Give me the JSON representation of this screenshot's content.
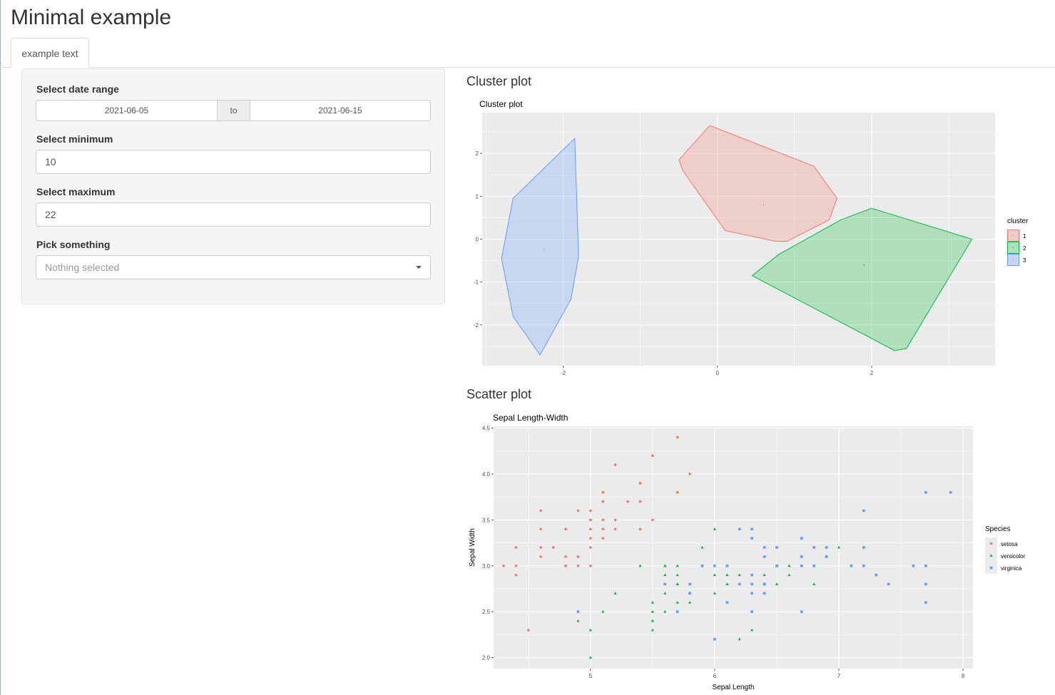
{
  "page": {
    "title": "Minimal example"
  },
  "tabs": [
    {
      "label": "example text"
    }
  ],
  "sidebar": {
    "date_range": {
      "label": "Select date range",
      "start": "2021-06-05",
      "separator": "to",
      "end": "2021-06-15"
    },
    "minimum": {
      "label": "Select minimum",
      "value": "10"
    },
    "maximum": {
      "label": "Select maximum",
      "value": "22"
    },
    "pick": {
      "label": "Pick something",
      "placeholder": "Nothing selected"
    }
  },
  "sections": {
    "cluster": "Cluster plot",
    "scatter": "Scatter plot"
  },
  "colors": {
    "red": "#F8766D",
    "green": "#00BA38",
    "blue": "#619CFF",
    "panel": "#EBEBEB"
  },
  "chart_data": [
    {
      "type": "scatter",
      "title": "Cluster plot",
      "xlabel": "",
      "ylabel": "",
      "xlim": [
        -3.05,
        3.6
      ],
      "ylim": [
        -2.95,
        2.95
      ],
      "xticks": [
        -2,
        0,
        2
      ],
      "yticks": [
        2,
        1,
        0,
        -1,
        -2
      ],
      "grid": true,
      "legend": {
        "title": "cluster",
        "position": "right",
        "entries": [
          "1",
          "2",
          "3"
        ]
      },
      "series": [
        {
          "name": "1",
          "color": "#F8766D",
          "hull": [
            [
              -0.1,
              2.65
            ],
            [
              1.25,
              1.7
            ],
            [
              1.55,
              0.95
            ],
            [
              1.45,
              0.45
            ],
            [
              0.9,
              -0.05
            ],
            [
              0.75,
              -0.05
            ],
            [
              0.1,
              0.2
            ],
            [
              -0.45,
              1.6
            ],
            [
              -0.5,
              1.85
            ]
          ],
          "center": [
            0.6,
            0.8
          ]
        },
        {
          "name": "2",
          "color": "#00BA38",
          "hull": [
            [
              2.0,
              0.72
            ],
            [
              3.3,
              0.0
            ],
            [
              2.45,
              -2.55
            ],
            [
              2.3,
              -2.6
            ],
            [
              0.45,
              -0.85
            ],
            [
              0.8,
              -0.35
            ],
            [
              1.6,
              0.45
            ]
          ],
          "center": [
            1.9,
            -0.6
          ]
        },
        {
          "name": "3",
          "color": "#619CFF",
          "hull": [
            [
              -1.85,
              2.35
            ],
            [
              -1.8,
              -0.4
            ],
            [
              -1.9,
              -1.4
            ],
            [
              -2.3,
              -2.7
            ],
            [
              -2.65,
              -1.8
            ],
            [
              -2.8,
              -0.45
            ],
            [
              -2.65,
              0.95
            ]
          ],
          "center": [
            -2.25,
            -0.25
          ]
        }
      ]
    },
    {
      "type": "scatter",
      "title": "Sepal Length-Width",
      "xlabel": "Sepal Length",
      "ylabel": "Sepal Width",
      "xlim": [
        4.22,
        8.08
      ],
      "ylim": [
        1.88,
        4.52
      ],
      "xticks": [
        5,
        6,
        7,
        8
      ],
      "yticks": [
        4.5,
        4.0,
        3.5,
        3.0,
        2.5,
        2.0
      ],
      "grid": true,
      "legend": {
        "title": "Species",
        "position": "right",
        "entries": [
          "setosa",
          "versicolor",
          "virginica"
        ]
      },
      "series": [
        {
          "name": "setosa",
          "color": "#F8766D",
          "shape": "circle",
          "points": [
            [
              5.1,
              3.5
            ],
            [
              4.9,
              3.0
            ],
            [
              4.7,
              3.2
            ],
            [
              4.6,
              3.1
            ],
            [
              5.0,
              3.6
            ],
            [
              5.4,
              3.9
            ],
            [
              4.6,
              3.4
            ],
            [
              5.0,
              3.4
            ],
            [
              4.4,
              2.9
            ],
            [
              4.9,
              3.1
            ],
            [
              5.4,
              3.7
            ],
            [
              4.8,
              3.4
            ],
            [
              4.8,
              3.0
            ],
            [
              4.3,
              3.0
            ],
            [
              5.8,
              4.0
            ],
            [
              5.7,
              4.4
            ],
            [
              5.4,
              3.9
            ],
            [
              5.1,
              3.5
            ],
            [
              5.7,
              3.8
            ],
            [
              5.1,
              3.8
            ],
            [
              5.4,
              3.4
            ],
            [
              5.1,
              3.7
            ],
            [
              4.6,
              3.6
            ],
            [
              5.1,
              3.3
            ],
            [
              4.8,
              3.4
            ],
            [
              5.0,
              3.0
            ],
            [
              5.0,
              3.4
            ],
            [
              5.2,
              3.5
            ],
            [
              5.2,
              3.4
            ],
            [
              4.7,
              3.2
            ],
            [
              4.8,
              3.1
            ],
            [
              5.4,
              3.4
            ],
            [
              5.2,
              4.1
            ],
            [
              5.5,
              4.2
            ],
            [
              4.9,
              3.1
            ],
            [
              5.0,
              3.2
            ],
            [
              5.5,
              3.5
            ],
            [
              4.9,
              3.6
            ],
            [
              4.4,
              3.0
            ],
            [
              5.1,
              3.4
            ],
            [
              5.0,
              3.5
            ],
            [
              4.5,
              2.3
            ],
            [
              4.4,
              3.2
            ],
            [
              5.0,
              3.5
            ],
            [
              5.1,
              3.8
            ],
            [
              4.8,
              3.0
            ],
            [
              5.1,
              3.8
            ],
            [
              4.6,
              3.2
            ],
            [
              5.3,
              3.7
            ],
            [
              5.0,
              3.3
            ]
          ]
        },
        {
          "name": "versicolor",
          "color": "#00BA38",
          "shape": "triangle",
          "points": [
            [
              7.0,
              3.2
            ],
            [
              6.4,
              3.2
            ],
            [
              6.9,
              3.1
            ],
            [
              5.5,
              2.3
            ],
            [
              6.5,
              2.8
            ],
            [
              5.7,
              2.8
            ],
            [
              6.3,
              3.3
            ],
            [
              4.9,
              2.4
            ],
            [
              6.6,
              2.9
            ],
            [
              5.2,
              2.7
            ],
            [
              5.0,
              2.0
            ],
            [
              5.9,
              3.0
            ],
            [
              6.0,
              2.2
            ],
            [
              6.1,
              2.9
            ],
            [
              5.6,
              2.9
            ],
            [
              6.7,
              3.1
            ],
            [
              5.6,
              3.0
            ],
            [
              5.8,
              2.7
            ],
            [
              6.2,
              2.2
            ],
            [
              5.6,
              2.5
            ],
            [
              5.9,
              3.2
            ],
            [
              6.1,
              2.8
            ],
            [
              6.3,
              2.5
            ],
            [
              6.1,
              2.8
            ],
            [
              6.4,
              2.9
            ],
            [
              6.6,
              3.0
            ],
            [
              6.8,
              2.8
            ],
            [
              6.7,
              3.0
            ],
            [
              6.0,
              2.9
            ],
            [
              5.7,
              2.6
            ],
            [
              5.5,
              2.4
            ],
            [
              5.5,
              2.4
            ],
            [
              5.8,
              2.7
            ],
            [
              6.0,
              2.7
            ],
            [
              5.4,
              3.0
            ],
            [
              6.0,
              3.4
            ],
            [
              6.7,
              3.1
            ],
            [
              6.3,
              2.3
            ],
            [
              5.6,
              3.0
            ],
            [
              5.5,
              2.5
            ],
            [
              5.5,
              2.6
            ],
            [
              6.1,
              3.0
            ],
            [
              5.8,
              2.6
            ],
            [
              5.0,
              2.3
            ],
            [
              5.6,
              2.7
            ],
            [
              5.7,
              3.0
            ],
            [
              5.7,
              2.9
            ],
            [
              6.2,
              2.9
            ],
            [
              5.1,
              2.5
            ],
            [
              5.7,
              2.8
            ]
          ]
        },
        {
          "name": "virginica",
          "color": "#619CFF",
          "shape": "square",
          "points": [
            [
              6.3,
              3.3
            ],
            [
              5.8,
              2.7
            ],
            [
              7.1,
              3.0
            ],
            [
              6.3,
              2.9
            ],
            [
              6.5,
              3.0
            ],
            [
              7.6,
              3.0
            ],
            [
              4.9,
              2.5
            ],
            [
              7.3,
              2.9
            ],
            [
              6.7,
              2.5
            ],
            [
              7.2,
              3.6
            ],
            [
              6.5,
              3.2
            ],
            [
              6.4,
              2.7
            ],
            [
              6.8,
              3.0
            ],
            [
              5.7,
              2.5
            ],
            [
              5.8,
              2.8
            ],
            [
              6.4,
              3.2
            ],
            [
              6.5,
              3.0
            ],
            [
              7.7,
              3.8
            ],
            [
              7.7,
              2.6
            ],
            [
              6.0,
              2.2
            ],
            [
              6.9,
              3.2
            ],
            [
              5.6,
              2.8
            ],
            [
              7.7,
              2.8
            ],
            [
              6.3,
              2.7
            ],
            [
              6.7,
              3.3
            ],
            [
              7.2,
              3.2
            ],
            [
              6.2,
              2.8
            ],
            [
              6.1,
              3.0
            ],
            [
              6.4,
              2.8
            ],
            [
              7.2,
              3.0
            ],
            [
              7.4,
              2.8
            ],
            [
              7.9,
              3.8
            ],
            [
              6.4,
              2.8
            ],
            [
              6.3,
              2.8
            ],
            [
              6.1,
              2.6
            ],
            [
              7.7,
              3.0
            ],
            [
              6.3,
              3.4
            ],
            [
              6.4,
              3.1
            ],
            [
              6.0,
              3.0
            ],
            [
              6.9,
              3.1
            ],
            [
              6.7,
              3.1
            ],
            [
              6.9,
              3.1
            ],
            [
              5.8,
              2.7
            ],
            [
              6.8,
              3.2
            ],
            [
              6.7,
              3.3
            ],
            [
              6.7,
              3.0
            ],
            [
              6.3,
              2.5
            ],
            [
              6.5,
              3.0
            ],
            [
              6.2,
              3.4
            ],
            [
              5.9,
              3.0
            ]
          ]
        }
      ]
    }
  ]
}
